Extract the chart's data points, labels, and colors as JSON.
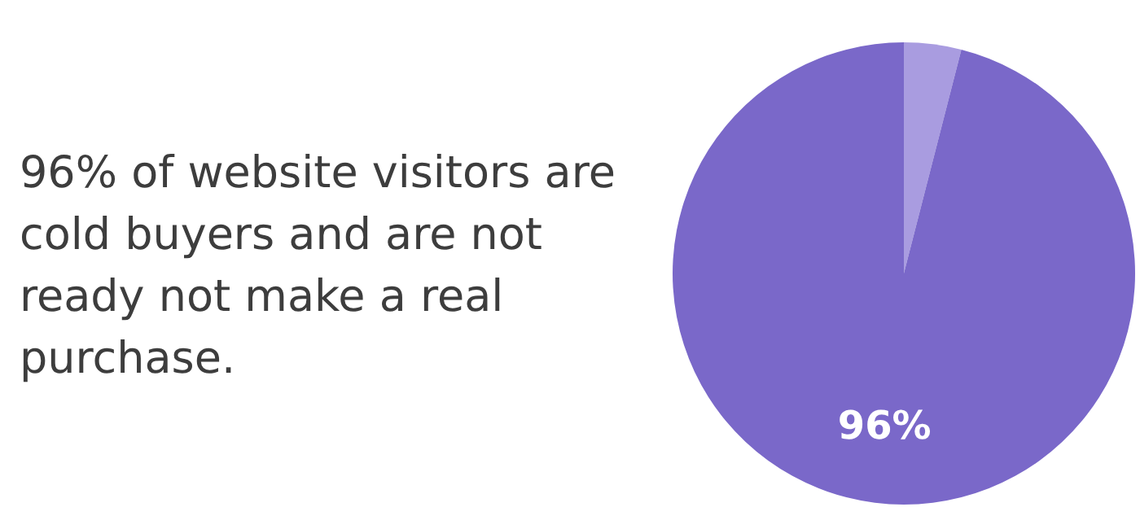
{
  "chart_data": {
    "type": "pie",
    "title": "96% of website visitors are cold buyers and are not ready not make a real purchase.",
    "categories": [
      null,
      null
    ],
    "values": [
      4,
      96
    ],
    "colors": [
      "#a99ce0",
      "#7a68c9"
    ],
    "value_labels": [
      null,
      "96%"
    ]
  }
}
